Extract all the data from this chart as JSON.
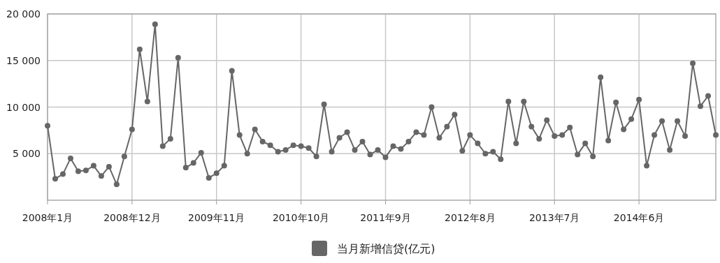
{
  "chart_data": {
    "type": "line",
    "categories": [
      "2008年1月",
      null,
      null,
      null,
      null,
      null,
      null,
      null,
      null,
      null,
      null,
      "2008年12月",
      null,
      null,
      null,
      null,
      null,
      null,
      null,
      null,
      null,
      null,
      "2009年11月",
      null,
      null,
      null,
      null,
      null,
      null,
      null,
      null,
      null,
      null,
      "2010年10月",
      null,
      null,
      null,
      null,
      null,
      null,
      null,
      null,
      null,
      null,
      "2011年9月",
      null,
      null,
      null,
      null,
      null,
      null,
      null,
      null,
      null,
      null,
      "2012年8月",
      null,
      null,
      null,
      null,
      null,
      null,
      null,
      null,
      null,
      null,
      "2013年7月",
      null,
      null,
      null,
      null,
      null,
      null,
      null,
      null,
      null,
      null,
      "2014年6月",
      null,
      null,
      null,
      null,
      null,
      null,
      null,
      null,
      null,
      null
    ],
    "series": [
      {
        "name": "当月新增信贷(亿元)",
        "color": "#666666",
        "values": [
          8000,
          2300,
          2800,
          4500,
          3100,
          3200,
          3700,
          2600,
          3600,
          1700,
          4700,
          7600,
          16200,
          10600,
          18900,
          5800,
          6600,
          15300,
          3500,
          4000,
          5100,
          2400,
          2900,
          3700,
          13900,
          7000,
          5000,
          7600,
          6300,
          5900,
          5200,
          5400,
          5900,
          5800,
          5600,
          4700,
          10300,
          5200,
          6700,
          7300,
          5400,
          6300,
          4900,
          5400,
          4600,
          5800,
          5500,
          6300,
          7300,
          7000,
          10000,
          6700,
          7900,
          9200,
          5300,
          7000,
          6100,
          5000,
          5200,
          4400,
          10600,
          6100,
          10600,
          7900,
          6600,
          8600,
          6900,
          7000,
          7800,
          4900,
          6100,
          4700,
          13200,
          6400,
          10500,
          7600,
          8700,
          10800,
          3700,
          7000,
          8500,
          5400,
          8500,
          6900,
          14700,
          10100,
          11200,
          7000
        ]
      }
    ],
    "ylim": [
      0,
      20000
    ],
    "yticks": [
      {
        "value": 5000,
        "label": "5 000"
      },
      {
        "value": 10000,
        "label": "10 000"
      },
      {
        "value": 15000,
        "label": "15 000"
      },
      {
        "value": 20000,
        "label": "20 000"
      }
    ],
    "grid": true,
    "legend": "bottom",
    "marker": "circle",
    "line_style": "solid"
  }
}
